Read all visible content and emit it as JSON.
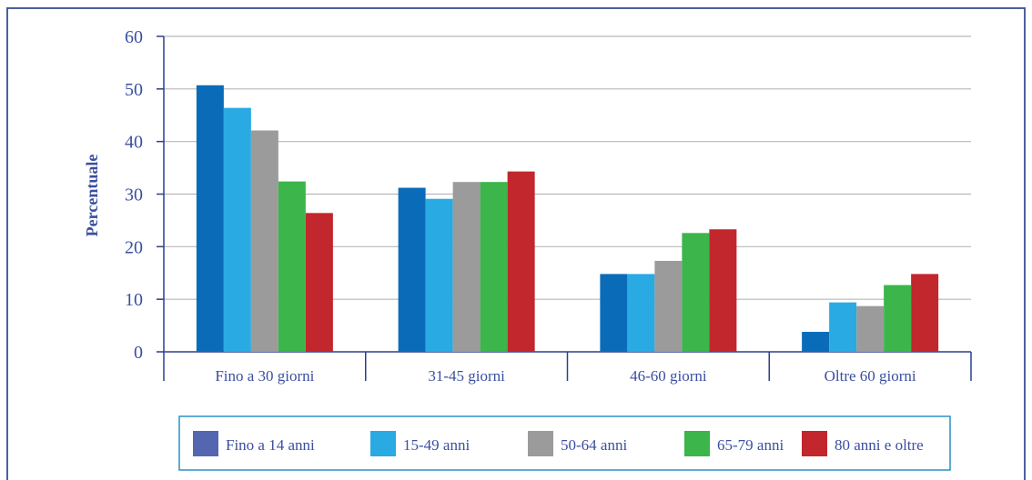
{
  "chart_data": {
    "type": "bar",
    "title": "",
    "xlabel": "",
    "ylabel": "Percentuale",
    "ylim": [
      0,
      60
    ],
    "yticks": [
      0,
      10,
      20,
      30,
      40,
      50,
      60
    ],
    "grid": true,
    "legend_position": "bottom",
    "categories": [
      "Fino a 30 giorni",
      "31-45 giorni",
      "46-60 giorni",
      "Oltre 60 giorni"
    ],
    "series": [
      {
        "name": "Fino a 14 anni",
        "color": "#0a6cb8",
        "legend_color": "#5566b0",
        "values": [
          50.7,
          31.2,
          14.8,
          3.8
        ]
      },
      {
        "name": "15-49 anni",
        "color": "#2aaae2",
        "legend_color": "#2aaae2",
        "values": [
          46.4,
          29.1,
          14.8,
          9.4
        ]
      },
      {
        "name": "50-64 anni",
        "color": "#9b9b9b",
        "legend_color": "#9b9b9b",
        "values": [
          42.1,
          32.3,
          17.3,
          8.7
        ]
      },
      {
        "name": "65-79 anni",
        "color": "#3cb64a",
        "legend_color": "#3cb64a",
        "values": [
          32.4,
          32.3,
          22.6,
          12.7
        ]
      },
      {
        "name": "80 anni e oltre",
        "color": "#c1272d",
        "legend_color": "#c1272d",
        "values": [
          26.4,
          34.3,
          23.3,
          14.8
        ]
      }
    ]
  }
}
